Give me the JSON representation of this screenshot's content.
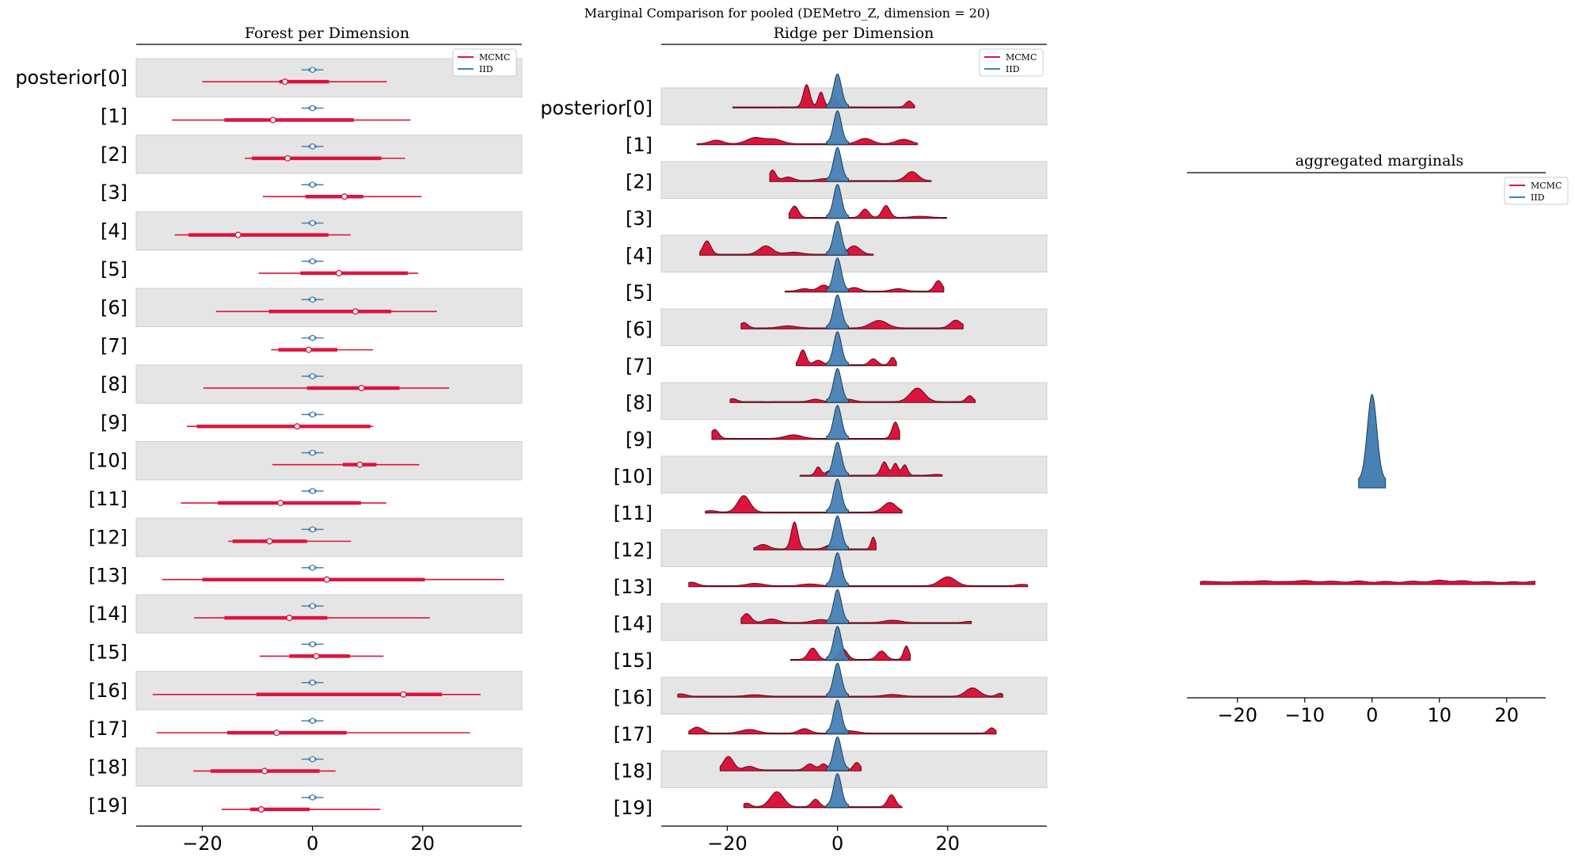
{
  "suptitle": "Marginal Comparison for pooled (DEMetro_Z, dimension = 20)",
  "colors": {
    "mcmc": "#dc143c",
    "iid": "#4682b4",
    "band": "#e5e5e5",
    "mcmc_edge": "#5a0a18",
    "iid_edge": "#1f3a55"
  },
  "chart_data": [
    {
      "type": "forest",
      "title": "Forest per Dimension",
      "xlim": [
        -32,
        38
      ],
      "xticks": [
        -20,
        0,
        20
      ],
      "xticklabels": [
        "−20",
        "0",
        "20"
      ],
      "labels": [
        "posterior[0]",
        "[1]",
        "[2]",
        "[3]",
        "[4]",
        "[5]",
        "[6]",
        "[7]",
        "[8]",
        "[9]",
        "[10]",
        "[11]",
        "[12]",
        "[13]",
        "[14]",
        "[15]",
        "[16]",
        "[17]",
        "[18]",
        "[19]"
      ],
      "legend": [
        "MCMC",
        "IID"
      ],
      "legend_loc": "upper right",
      "iid": {
        "median": 0,
        "hdi_lo": -2,
        "hdi_hi": 2,
        "iqr_lo": -0.7,
        "iqr_hi": 0.7
      },
      "mcmc": [
        {
          "lo": -20,
          "q1": -6,
          "median": -5,
          "q3": 3,
          "hi": 13.5
        },
        {
          "lo": -25.5,
          "q1": -16,
          "median": -7.2,
          "q3": 7.5,
          "hi": 17.8
        },
        {
          "lo": -12.3,
          "q1": -11,
          "median": -4.5,
          "q3": 12.5,
          "hi": 16.8
        },
        {
          "lo": -9,
          "q1": -1.3,
          "median": 5.8,
          "q3": 9.2,
          "hi": 19.8
        },
        {
          "lo": -25,
          "q1": -22.5,
          "median": -13.5,
          "q3": 2.9,
          "hi": 6.9
        },
        {
          "lo": -9.8,
          "q1": -2.2,
          "median": 4.8,
          "q3": 17.3,
          "hi": 19.2
        },
        {
          "lo": -17.5,
          "q1": -7.9,
          "median": 7.8,
          "q3": 14.3,
          "hi": 22.6
        },
        {
          "lo": -7.5,
          "q1": -6.2,
          "median": -0.7,
          "q3": 4.5,
          "hi": 11
        },
        {
          "lo": -19.8,
          "q1": -1,
          "median": 8.9,
          "q3": 15.8,
          "hi": 24.8
        },
        {
          "lo": -22.8,
          "q1": -21,
          "median": -2.8,
          "q3": 10.5,
          "hi": 11
        },
        {
          "lo": -7.3,
          "q1": 5.5,
          "median": 8.6,
          "q3": 11.6,
          "hi": 19.4
        },
        {
          "lo": -23.9,
          "q1": -17.2,
          "median": -5.8,
          "q3": 8.8,
          "hi": 13.4
        },
        {
          "lo": -15.3,
          "q1": -14.5,
          "median": -7.8,
          "q3": -1,
          "hi": 7
        },
        {
          "lo": -27.3,
          "q1": -20,
          "median": 2.6,
          "q3": 20.4,
          "hi": 34.8
        },
        {
          "lo": -21.5,
          "q1": -16,
          "median": -4.2,
          "q3": 2.7,
          "hi": 21.3
        },
        {
          "lo": -9.6,
          "q1": -4.2,
          "median": 0.7,
          "q3": 6.8,
          "hi": 12.9
        },
        {
          "lo": -29,
          "q1": -10.2,
          "median": 16.5,
          "q3": 23.5,
          "hi": 30.5
        },
        {
          "lo": -28.3,
          "q1": -15.5,
          "median": -6.5,
          "q3": 6.2,
          "hi": 28.6
        },
        {
          "lo": -21.6,
          "q1": -18.5,
          "median": -8.7,
          "q3": 1.3,
          "hi": 4.2
        },
        {
          "lo": -16.5,
          "q1": -11.3,
          "median": -9.3,
          "q3": -0.5,
          "hi": 12.3
        }
      ]
    },
    {
      "type": "ridge",
      "title": "Ridge per Dimension",
      "xlim": [
        -32,
        38
      ],
      "xticks": [
        -20,
        0,
        20
      ],
      "xticklabels": [
        "−20",
        "0",
        "20"
      ],
      "labels": [
        "posterior[0]",
        "[1]",
        "[2]",
        "[3]",
        "[4]",
        "[5]",
        "[6]",
        "[7]",
        "[8]",
        "[9]",
        "[10]",
        "[11]",
        "[12]",
        "[13]",
        "[14]",
        "[15]",
        "[16]",
        "[17]",
        "[18]",
        "[19]"
      ],
      "legend": [
        "MCMC",
        "IID"
      ],
      "legend_loc": "upper right",
      "iid": {
        "lo": -2,
        "hi": 2,
        "peak": 0,
        "sd": 0.7
      },
      "mcmc": [
        {
          "range": [
            -19,
            14
          ],
          "peaks": [
            [
              -5.6,
              0.75,
              0.6
            ],
            [
              -3,
              0.5,
              0.5
            ],
            [
              -0.5,
              0.35,
              0.6
            ],
            [
              13,
              0.2,
              0.6
            ]
          ]
        },
        {
          "range": [
            -25.5,
            14.5
          ],
          "peaks": [
            [
              -22,
              0.12,
              1.2
            ],
            [
              -15,
              0.2,
              1.5
            ],
            [
              -11.5,
              0.15,
              1.5
            ],
            [
              5,
              0.18,
              1.3
            ],
            [
              12,
              0.15,
              1.3
            ]
          ]
        },
        {
          "range": [
            -12.3,
            17
          ],
          "peaks": [
            [
              -11.8,
              0.35,
              0.6
            ],
            [
              -9,
              0.12,
              1
            ],
            [
              -2,
              0.07,
              1.5
            ],
            [
              13.5,
              0.3,
              1.1
            ]
          ]
        },
        {
          "range": [
            -8.8,
            19.8
          ],
          "peaks": [
            [
              -7.8,
              0.38,
              0.7
            ],
            [
              5,
              0.28,
              0.7
            ],
            [
              8.8,
              0.4,
              0.7
            ],
            [
              15,
              0.04,
              1.5
            ]
          ]
        },
        {
          "range": [
            -25,
            6.5
          ],
          "peaks": [
            [
              -23.7,
              0.45,
              0.7
            ],
            [
              -13,
              0.28,
              1.2
            ],
            [
              -8,
              0.07,
              1.5
            ],
            [
              3,
              0.28,
              1.1
            ]
          ]
        },
        {
          "range": [
            -9.5,
            19.3
          ],
          "peaks": [
            [
              -2.5,
              0.2,
              1
            ],
            [
              -6,
              0.08,
              1
            ],
            [
              3,
              0.12,
              1
            ],
            [
              11,
              0.08,
              1.2
            ],
            [
              18.3,
              0.35,
              0.7
            ]
          ]
        },
        {
          "range": [
            -17.5,
            22.8
          ],
          "peaks": [
            [
              -17,
              0.18,
              0.7
            ],
            [
              -9,
              0.07,
              1.5
            ],
            [
              7.5,
              0.25,
              1.5
            ],
            [
              21.5,
              0.26,
              1
            ]
          ]
        },
        {
          "range": [
            -7.5,
            10.7
          ],
          "peaks": [
            [
              -6.3,
              0.5,
              0.6
            ],
            [
              -3.5,
              0.15,
              0.8
            ],
            [
              6.5,
              0.2,
              0.7
            ],
            [
              10,
              0.25,
              0.5
            ]
          ]
        },
        {
          "range": [
            -19.5,
            25
          ],
          "peaks": [
            [
              -19,
              0.1,
              0.7
            ],
            [
              -4,
              0.08,
              1
            ],
            [
              2,
              0.08,
              1
            ],
            [
              14.5,
              0.45,
              1.3
            ],
            [
              24,
              0.2,
              0.6
            ]
          ]
        },
        {
          "range": [
            -22.8,
            11.3
          ],
          "peaks": [
            [
              -22.3,
              0.3,
              0.7
            ],
            [
              -8,
              0.12,
              1.5
            ],
            [
              10.5,
              0.55,
              0.6
            ]
          ]
        },
        {
          "range": [
            -6.8,
            19
          ],
          "peaks": [
            [
              -3.5,
              0.28,
              0.5
            ],
            [
              -1.5,
              0.15,
              0.6
            ],
            [
              8.5,
              0.45,
              0.6
            ],
            [
              10.5,
              0.4,
              0.5
            ],
            [
              12.2,
              0.35,
              0.5
            ],
            [
              18,
              0.03,
              1
            ]
          ]
        },
        {
          "range": [
            -24,
            11.7
          ],
          "peaks": [
            [
              -17,
              0.55,
              1.1
            ],
            [
              -23,
              0.05,
              1
            ],
            [
              9.5,
              0.32,
              1.2
            ]
          ]
        },
        {
          "range": [
            -15.2,
            7
          ],
          "peaks": [
            [
              -7.8,
              0.9,
              0.6
            ],
            [
              -13.5,
              0.15,
              1
            ],
            [
              -1.5,
              0.12,
              0.8
            ],
            [
              6.5,
              0.4,
              0.4
            ]
          ]
        },
        {
          "range": [
            -27,
            34.5
          ],
          "peaks": [
            [
              -26.5,
              0.12,
              1
            ],
            [
              -15,
              0.08,
              1.5
            ],
            [
              -5,
              0.06,
              1.5
            ],
            [
              20,
              0.3,
              1.4
            ],
            [
              33.5,
              0.05,
              1
            ]
          ]
        },
        {
          "range": [
            -17.5,
            24.3
          ],
          "peaks": [
            [
              -16.5,
              0.3,
              0.8
            ],
            [
              -12,
              0.12,
              1.2
            ],
            [
              -3,
              0.1,
              1.5
            ],
            [
              10,
              0.08,
              1.5
            ],
            [
              24,
              0.04,
              1
            ]
          ]
        },
        {
          "range": [
            -8.5,
            13.2
          ],
          "peaks": [
            [
              -4.5,
              0.38,
              0.8
            ],
            [
              1,
              0.35,
              0.8
            ],
            [
              8,
              0.28,
              0.8
            ],
            [
              12.5,
              0.45,
              0.5
            ]
          ]
        },
        {
          "range": [
            -29,
            30
          ],
          "peaks": [
            [
              -28.5,
              0.08,
              1
            ],
            [
              -15,
              0.05,
              1.5
            ],
            [
              10,
              0.06,
              1.5
            ],
            [
              24.5,
              0.28,
              1.2
            ],
            [
              29.5,
              0.1,
              0.6
            ]
          ]
        },
        {
          "range": [
            -27,
            28.8
          ],
          "peaks": [
            [
              -25.5,
              0.2,
              1
            ],
            [
              -16,
              0.12,
              1.5
            ],
            [
              -6,
              0.15,
              1
            ],
            [
              2,
              0.08,
              1.5
            ],
            [
              28,
              0.18,
              0.6
            ]
          ]
        },
        {
          "range": [
            -21.3,
            4.3
          ],
          "peaks": [
            [
              -19.8,
              0.45,
              0.9
            ],
            [
              -16,
              0.12,
              1
            ],
            [
              -5,
              0.2,
              0.8
            ],
            [
              -2.5,
              0.2,
              0.7
            ],
            [
              3.5,
              0.25,
              0.6
            ]
          ]
        },
        {
          "range": [
            -17,
            11.7
          ],
          "peaks": [
            [
              -16.5,
              0.12,
              0.7
            ],
            [
              -11,
              0.5,
              1.2
            ],
            [
              -4,
              0.25,
              0.7
            ],
            [
              9.8,
              0.4,
              0.7
            ]
          ]
        }
      ]
    },
    {
      "type": "ridge",
      "title": "aggregated marginals",
      "xlim": [
        -27.5,
        25.8
      ],
      "xticks": [
        -20,
        -10,
        0,
        10,
        20
      ],
      "xticklabels": [
        "−20",
        "−10",
        "0",
        "10",
        "20"
      ],
      "legend": [
        "MCMC",
        "IID"
      ],
      "legend_loc": "upper right",
      "iid": {
        "lo": -2,
        "hi": 2,
        "peak": 0,
        "sd": 0.7
      },
      "mcmc": {
        "range": [
          -25.5,
          24.2
        ],
        "peaks": [
          [
            -25,
            0.5,
            1.3
          ],
          [
            -22,
            0.3,
            1.3
          ],
          [
            -19,
            0.45,
            1.3
          ],
          [
            -16,
            0.6,
            1.2
          ],
          [
            -13,
            0.4,
            1.2
          ],
          [
            -10,
            0.7,
            1.3
          ],
          [
            -6,
            0.55,
            1.3
          ],
          [
            -2,
            0.6,
            1.2
          ],
          [
            2,
            0.5,
            1.2
          ],
          [
            6,
            0.55,
            1.2
          ],
          [
            10,
            0.8,
            1.3
          ],
          [
            13.5,
            0.65,
            1.1
          ],
          [
            17,
            0.45,
            1.2
          ],
          [
            21,
            0.4,
            1.2
          ],
          [
            24,
            0.5,
            0.8
          ]
        ]
      }
    }
  ]
}
